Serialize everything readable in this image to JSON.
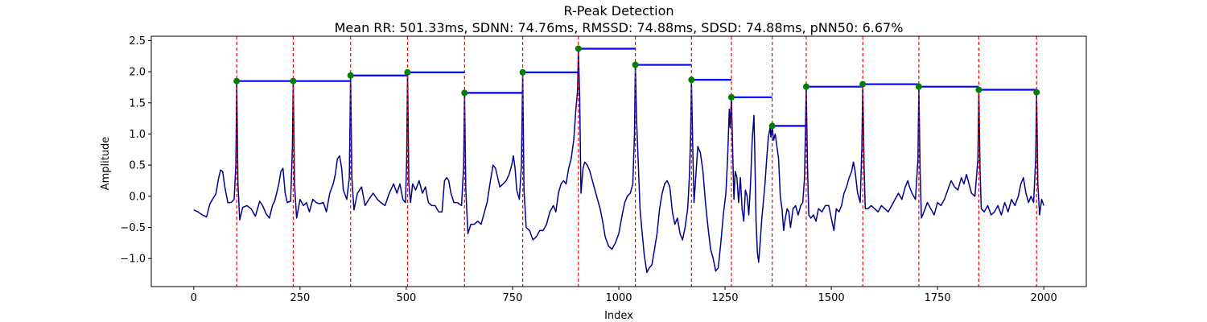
{
  "chart_data": {
    "type": "line",
    "title": "R-Peak Detection",
    "subtitle": "Mean RR: 501.33ms, SDNN: 74.76ms, RMSSD: 74.88ms, SDSD: 74.88ms, pNN50: 6.67%",
    "xlabel": "Index",
    "ylabel": "Amplitude",
    "xlim": [
      -100,
      2100
    ],
    "ylim": [
      -1.45,
      2.57
    ],
    "xticks": [
      0,
      250,
      500,
      750,
      1000,
      1250,
      1500,
      1750,
      2000
    ],
    "yticks": [
      -1.0,
      -0.5,
      0.0,
      0.5,
      1.0,
      1.5,
      2.0,
      2.5
    ],
    "grid": false,
    "colors": {
      "signal": "#00008b",
      "peak_lines": "#ff0000",
      "rr_segments": "#0000ff",
      "peak_markers": "#008000"
    },
    "peaks": [
      {
        "x": 101,
        "y": 1.85
      },
      {
        "x": 234,
        "y": 1.85
      },
      {
        "x": 369,
        "y": 1.94
      },
      {
        "x": 503,
        "y": 1.99
      },
      {
        "x": 637,
        "y": 1.66
      },
      {
        "x": 774,
        "y": 1.99
      },
      {
        "x": 905,
        "y": 2.37
      },
      {
        "x": 1039,
        "y": 2.11
      },
      {
        "x": 1171,
        "y": 1.87
      },
      {
        "x": 1265,
        "y": 1.59
      },
      {
        "x": 1361,
        "y": 1.13
      },
      {
        "x": 1441,
        "y": 1.76
      },
      {
        "x": 1574,
        "y": 1.8
      },
      {
        "x": 1706,
        "y": 1.76
      },
      {
        "x": 1847,
        "y": 1.71
      },
      {
        "x": 1983,
        "y": 1.67
      }
    ],
    "signal": [
      [
        0,
        -0.22
      ],
      [
        10,
        -0.25
      ],
      [
        20,
        -0.3
      ],
      [
        30,
        -0.33
      ],
      [
        38,
        -0.12
      ],
      [
        45,
        -0.04
      ],
      [
        52,
        0.04
      ],
      [
        58,
        0.28
      ],
      [
        63,
        0.42
      ],
      [
        68,
        0.4
      ],
      [
        73,
        0.15
      ],
      [
        80,
        -0.1
      ],
      [
        88,
        -0.1
      ],
      [
        95,
        -0.05
      ],
      [
        99,
        0.5
      ],
      [
        101,
        1.85
      ],
      [
        104,
        0.2
      ],
      [
        108,
        -0.38
      ],
      [
        115,
        -0.18
      ],
      [
        125,
        -0.15
      ],
      [
        135,
        -0.2
      ],
      [
        145,
        -0.32
      ],
      [
        155,
        -0.08
      ],
      [
        162,
        -0.15
      ],
      [
        170,
        -0.28
      ],
      [
        178,
        -0.35
      ],
      [
        185,
        -0.15
      ],
      [
        190,
        -0.08
      ],
      [
        195,
        0.05
      ],
      [
        200,
        0.2
      ],
      [
        205,
        0.4
      ],
      [
        210,
        0.45
      ],
      [
        215,
        0.05
      ],
      [
        220,
        -0.1
      ],
      [
        228,
        -0.08
      ],
      [
        232,
        0.8
      ],
      [
        234,
        1.85
      ],
      [
        237,
        0.2
      ],
      [
        242,
        -0.35
      ],
      [
        250,
        -0.05
      ],
      [
        258,
        -0.15
      ],
      [
        265,
        -0.1
      ],
      [
        272,
        -0.25
      ],
      [
        280,
        -0.05
      ],
      [
        288,
        -0.1
      ],
      [
        295,
        -0.12
      ],
      [
        305,
        -0.1
      ],
      [
        312,
        -0.25
      ],
      [
        320,
        0.05
      ],
      [
        328,
        0.2
      ],
      [
        333,
        0.35
      ],
      [
        338,
        0.6
      ],
      [
        343,
        0.65
      ],
      [
        348,
        0.45
      ],
      [
        352,
        0.1
      ],
      [
        360,
        -0.05
      ],
      [
        366,
        0.3
      ],
      [
        369,
        1.94
      ],
      [
        372,
        0.3
      ],
      [
        377,
        -0.22
      ],
      [
        385,
        0.05
      ],
      [
        395,
        0.15
      ],
      [
        403,
        -0.15
      ],
      [
        412,
        -0.05
      ],
      [
        422,
        0.05
      ],
      [
        432,
        -0.05
      ],
      [
        440,
        -0.1
      ],
      [
        450,
        -0.15
      ],
      [
        460,
        0.05
      ],
      [
        470,
        0.2
      ],
      [
        478,
        0.05
      ],
      [
        485,
        0.2
      ],
      [
        492,
        -0.05
      ],
      [
        498,
        -0.1
      ],
      [
        501,
        0.6
      ],
      [
        503,
        1.99
      ],
      [
        506,
        0.2
      ],
      [
        510,
        -0.1
      ],
      [
        515,
        0.2
      ],
      [
        522,
        0.1
      ],
      [
        530,
        0.25
      ],
      [
        538,
        0.05
      ],
      [
        545,
        0.15
      ],
      [
        552,
        -0.1
      ],
      [
        560,
        -0.15
      ],
      [
        568,
        -0.15
      ],
      [
        576,
        -0.25
      ],
      [
        584,
        -0.25
      ],
      [
        590,
        0.25
      ],
      [
        595,
        0.3
      ],
      [
        600,
        0.25
      ],
      [
        605,
        0.05
      ],
      [
        612,
        -0.1
      ],
      [
        620,
        -0.1
      ],
      [
        630,
        -0.15
      ],
      [
        635,
        0.5
      ],
      [
        637,
        1.66
      ],
      [
        640,
        0.1
      ],
      [
        645,
        -0.6
      ],
      [
        652,
        -0.45
      ],
      [
        660,
        -0.45
      ],
      [
        668,
        -0.4
      ],
      [
        676,
        -0.45
      ],
      [
        684,
        -0.25
      ],
      [
        690,
        -0.1
      ],
      [
        698,
        0.25
      ],
      [
        704,
        0.5
      ],
      [
        710,
        0.45
      ],
      [
        715,
        0.3
      ],
      [
        720,
        0.15
      ],
      [
        728,
        0.2
      ],
      [
        735,
        0.25
      ],
      [
        742,
        0.35
      ],
      [
        748,
        0.5
      ],
      [
        752,
        0.65
      ],
      [
        756,
        0.45
      ],
      [
        760,
        0.1
      ],
      [
        766,
        -0.05
      ],
      [
        771,
        0.5
      ],
      [
        774,
        1.99
      ],
      [
        777,
        0.1
      ],
      [
        782,
        -0.5
      ],
      [
        790,
        -0.55
      ],
      [
        798,
        -0.7
      ],
      [
        806,
        -0.65
      ],
      [
        814,
        -0.55
      ],
      [
        822,
        -0.55
      ],
      [
        830,
        -0.45
      ],
      [
        838,
        -0.25
      ],
      [
        846,
        -0.15
      ],
      [
        852,
        -0.25
      ],
      [
        858,
        0.05
      ],
      [
        864,
        0.2
      ],
      [
        870,
        0.25
      ],
      [
        876,
        0.2
      ],
      [
        882,
        0.45
      ],
      [
        888,
        0.6
      ],
      [
        894,
        0.9
      ],
      [
        899,
        1.4
      ],
      [
        903,
        1.7
      ],
      [
        905,
        2.37
      ],
      [
        908,
        1.6
      ],
      [
        911,
        0.05
      ],
      [
        916,
        0.45
      ],
      [
        920,
        0.55
      ],
      [
        926,
        0.5
      ],
      [
        932,
        0.4
      ],
      [
        940,
        0.2
      ],
      [
        948,
        0.0
      ],
      [
        956,
        -0.2
      ],
      [
        962,
        -0.4
      ],
      [
        968,
        -0.65
      ],
      [
        976,
        -0.8
      ],
      [
        984,
        -0.85
      ],
      [
        992,
        -0.75
      ],
      [
        1000,
        -0.6
      ],
      [
        1008,
        -0.3
      ],
      [
        1014,
        -0.1
      ],
      [
        1020,
        0.0
      ],
      [
        1027,
        0.05
      ],
      [
        1033,
        0.2
      ],
      [
        1037,
        1.0
      ],
      [
        1039,
        2.11
      ],
      [
        1042,
        1.2
      ],
      [
        1046,
        0.5
      ],
      [
        1050,
        -0.2
      ],
      [
        1055,
        -0.6
      ],
      [
        1060,
        -0.95
      ],
      [
        1066,
        -1.22
      ],
      [
        1072,
        -1.15
      ],
      [
        1078,
        -1.1
      ],
      [
        1084,
        -0.85
      ],
      [
        1090,
        -0.6
      ],
      [
        1096,
        -0.2
      ],
      [
        1102,
        0.05
      ],
      [
        1108,
        0.2
      ],
      [
        1114,
        0.25
      ],
      [
        1120,
        0.15
      ],
      [
        1126,
        -0.25
      ],
      [
        1132,
        -0.45
      ],
      [
        1138,
        -0.35
      ],
      [
        1144,
        -0.6
      ],
      [
        1150,
        -0.7
      ],
      [
        1156,
        -0.5
      ],
      [
        1162,
        -0.2
      ],
      [
        1166,
        0.3
      ],
      [
        1169,
        1.0
      ],
      [
        1171,
        1.87
      ],
      [
        1174,
        0.8
      ],
      [
        1177,
        -0.1
      ],
      [
        1180,
        0.2
      ],
      [
        1186,
        0.8
      ],
      [
        1192,
        0.7
      ],
      [
        1198,
        0.4
      ],
      [
        1204,
        -0.1
      ],
      [
        1210,
        -0.5
      ],
      [
        1216,
        -0.85
      ],
      [
        1222,
        -1.0
      ],
      [
        1228,
        -1.2
      ],
      [
        1234,
        -1.15
      ],
      [
        1240,
        -0.75
      ],
      [
        1246,
        -0.3
      ],
      [
        1252,
        0.05
      ],
      [
        1256,
        0.6
      ],
      [
        1260,
        1.4
      ],
      [
        1262,
        1.1
      ],
      [
        1265,
        1.59
      ],
      [
        1268,
        0.7
      ],
      [
        1271,
        -0.05
      ],
      [
        1274,
        0.4
      ],
      [
        1278,
        0.3
      ],
      [
        1282,
        -0.1
      ],
      [
        1286,
        0.3
      ],
      [
        1290,
        -0.2
      ],
      [
        1294,
        -0.4
      ],
      [
        1298,
        0.1
      ],
      [
        1302,
        0.0
      ],
      [
        1306,
        -0.3
      ],
      [
        1310,
        0.2
      ],
      [
        1314,
        0.9
      ],
      [
        1318,
        1.3
      ],
      [
        1320,
        0.7
      ],
      [
        1323,
        -0.4
      ],
      [
        1326,
        -0.9
      ],
      [
        1329,
        -1.06
      ],
      [
        1332,
        -0.8
      ],
      [
        1336,
        -0.4
      ],
      [
        1340,
        -0.1
      ],
      [
        1344,
        0.2
      ],
      [
        1348,
        0.6
      ],
      [
        1352,
        0.95
      ],
      [
        1356,
        1.1
      ],
      [
        1358,
        0.95
      ],
      [
        1361,
        1.13
      ],
      [
        1364,
        0.9
      ],
      [
        1368,
        1.0
      ],
      [
        1372,
        0.8
      ],
      [
        1376,
        0.6
      ],
      [
        1380,
        0.0
      ],
      [
        1384,
        -0.2
      ],
      [
        1388,
        -0.55
      ],
      [
        1392,
        -0.35
      ],
      [
        1396,
        -0.2
      ],
      [
        1400,
        -0.25
      ],
      [
        1404,
        -0.5
      ],
      [
        1410,
        -0.2
      ],
      [
        1416,
        -0.15
      ],
      [
        1422,
        -0.3
      ],
      [
        1428,
        -0.15
      ],
      [
        1433,
        -0.1
      ],
      [
        1437,
        0.3
      ],
      [
        1439,
        1.0
      ],
      [
        1441,
        1.76
      ],
      [
        1444,
        0.5
      ],
      [
        1447,
        -0.3
      ],
      [
        1452,
        -0.35
      ],
      [
        1458,
        -0.3
      ],
      [
        1464,
        -0.4
      ],
      [
        1470,
        -0.2
      ],
      [
        1478,
        -0.25
      ],
      [
        1486,
        -0.15
      ],
      [
        1494,
        -0.15
      ],
      [
        1500,
        -0.35
      ],
      [
        1506,
        -0.55
      ],
      [
        1512,
        -0.2
      ],
      [
        1518,
        -0.25
      ],
      [
        1524,
        -0.15
      ],
      [
        1530,
        0.05
      ],
      [
        1536,
        0.15
      ],
      [
        1542,
        0.3
      ],
      [
        1548,
        0.4
      ],
      [
        1552,
        0.55
      ],
      [
        1556,
        0.4
      ],
      [
        1562,
        0.05
      ],
      [
        1568,
        -0.1
      ],
      [
        1572,
        0.8
      ],
      [
        1574,
        1.8
      ],
      [
        1577,
        0.5
      ],
      [
        1580,
        -0.2
      ],
      [
        1586,
        -0.2
      ],
      [
        1594,
        -0.15
      ],
      [
        1602,
        -0.2
      ],
      [
        1610,
        -0.25
      ],
      [
        1618,
        -0.15
      ],
      [
        1626,
        -0.2
      ],
      [
        1634,
        -0.25
      ],
      [
        1642,
        -0.15
      ],
      [
        1650,
        -0.05
      ],
      [
        1658,
        0.05
      ],
      [
        1666,
        -0.05
      ],
      [
        1674,
        0.15
      ],
      [
        1680,
        0.25
      ],
      [
        1684,
        0.15
      ],
      [
        1690,
        0.05
      ],
      [
        1698,
        -0.05
      ],
      [
        1704,
        0.6
      ],
      [
        1706,
        1.76
      ],
      [
        1709,
        0.4
      ],
      [
        1712,
        -0.35
      ],
      [
        1718,
        -0.25
      ],
      [
        1726,
        -0.1
      ],
      [
        1734,
        -0.2
      ],
      [
        1742,
        -0.3
      ],
      [
        1750,
        -0.1
      ],
      [
        1758,
        -0.15
      ],
      [
        1766,
        -0.05
      ],
      [
        1774,
        0.1
      ],
      [
        1782,
        0.25
      ],
      [
        1790,
        0.15
      ],
      [
        1798,
        0.1
      ],
      [
        1806,
        0.3
      ],
      [
        1812,
        0.2
      ],
      [
        1818,
        0.35
      ],
      [
        1824,
        0.2
      ],
      [
        1830,
        0.05
      ],
      [
        1838,
        0.0
      ],
      [
        1845,
        0.6
      ],
      [
        1847,
        1.71
      ],
      [
        1850,
        0.4
      ],
      [
        1853,
        -0.2
      ],
      [
        1860,
        -0.25
      ],
      [
        1868,
        -0.15
      ],
      [
        1876,
        -0.3
      ],
      [
        1884,
        -0.25
      ],
      [
        1892,
        -0.15
      ],
      [
        1900,
        -0.3
      ],
      [
        1908,
        -0.1
      ],
      [
        1916,
        -0.25
      ],
      [
        1924,
        -0.05
      ],
      [
        1932,
        -0.15
      ],
      [
        1940,
        0.0
      ],
      [
        1946,
        0.2
      ],
      [
        1952,
        0.3
      ],
      [
        1958,
        0.05
      ],
      [
        1964,
        -0.1
      ],
      [
        1970,
        0.0
      ],
      [
        1976,
        -0.1
      ],
      [
        1981,
        0.6
      ],
      [
        1983,
        1.67
      ],
      [
        1986,
        0.2
      ],
      [
        1990,
        -0.3
      ],
      [
        1995,
        -0.05
      ],
      [
        2000,
        -0.15
      ]
    ]
  }
}
